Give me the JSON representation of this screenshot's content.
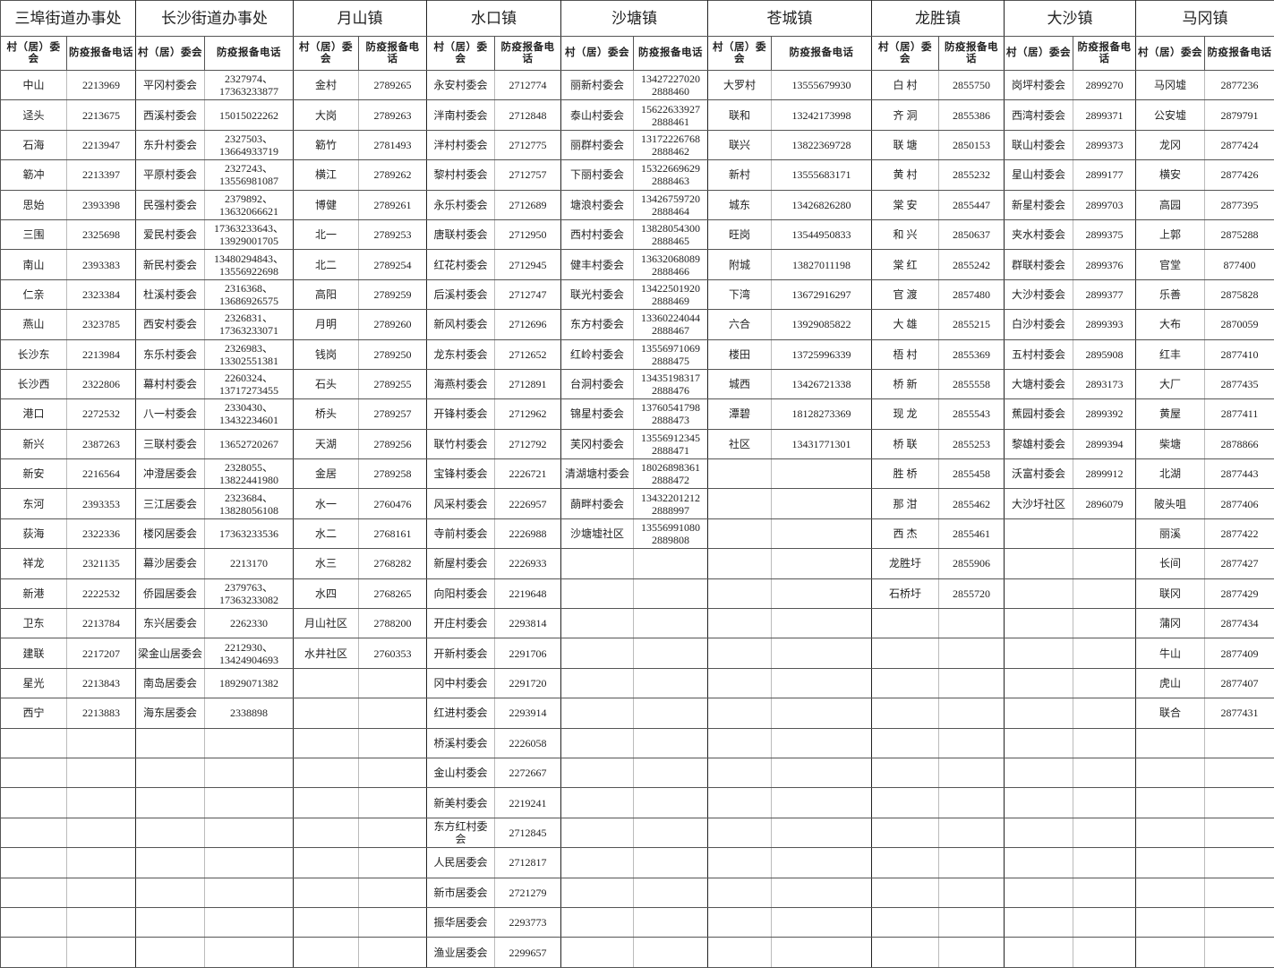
{
  "sub_headers": {
    "name": "村（居）委会",
    "phone": "防疫报备电话"
  },
  "towns": [
    {
      "name": "三埠街道办事处",
      "rows": [
        [
          "中山",
          "2213969"
        ],
        [
          "迳头",
          "2213675"
        ],
        [
          "石海",
          "2213947"
        ],
        [
          "簕冲",
          "2213397"
        ],
        [
          "思始",
          "2393398"
        ],
        [
          "三围",
          "2325698"
        ],
        [
          "南山",
          "2393383"
        ],
        [
          "仁亲",
          "2323384"
        ],
        [
          "燕山",
          "2323785"
        ],
        [
          "长沙东",
          "2213984"
        ],
        [
          "长沙西",
          "2322806"
        ],
        [
          "港口",
          "2272532"
        ],
        [
          "新兴",
          "2387263"
        ],
        [
          "新安",
          "2216564"
        ],
        [
          "东河",
          "2393353"
        ],
        [
          "荻海",
          "2322336"
        ],
        [
          "祥龙",
          "2321135"
        ],
        [
          "新港",
          "2222532"
        ],
        [
          "卫东",
          "2213784"
        ],
        [
          "建联",
          "2217207"
        ],
        [
          "星光",
          "2213843"
        ],
        [
          "西宁",
          "2213883"
        ]
      ]
    },
    {
      "name": "长沙街道办事处",
      "rows": [
        [
          "平冈村委会",
          "2327974、17363233877"
        ],
        [
          "西溪村委会",
          "15015022262"
        ],
        [
          "东升村委会",
          "2327503、13664933719"
        ],
        [
          "平原村委会",
          "2327243、13556981087"
        ],
        [
          "民强村委会",
          "2379892、13632066621"
        ],
        [
          "爱民村委会",
          "17363233643、13929001705"
        ],
        [
          "新民村委会",
          "13480294843、13556922698"
        ],
        [
          "杜溪村委会",
          "2316368、13686926575"
        ],
        [
          "西安村委会",
          "2326831、17363233071"
        ],
        [
          "东乐村委会",
          "2326983、13302551381"
        ],
        [
          "幕村村委会",
          "2260324、13717273455"
        ],
        [
          "八一村委会",
          "2330430、13432234601"
        ],
        [
          "三联村委会",
          "13652720267"
        ],
        [
          "冲澄居委会",
          "2328055、13822441980"
        ],
        [
          "三江居委会",
          "2323684、13828056108"
        ],
        [
          "楼冈居委会",
          "17363233536"
        ],
        [
          "幕沙居委会",
          "2213170"
        ],
        [
          "侨园居委会",
          "2379763、17363233082"
        ],
        [
          "东兴居委会",
          "2262330"
        ],
        [
          "梁金山居委会",
          "2212930、13424904693"
        ],
        [
          "南岛居委会",
          "18929071382"
        ],
        [
          "海东居委会",
          "2338898"
        ]
      ]
    },
    {
      "name": "月山镇",
      "rows": [
        [
          "金村",
          "2789265"
        ],
        [
          "大岗",
          "2789263"
        ],
        [
          "簕竹",
          "2781493"
        ],
        [
          "横江",
          "2789262"
        ],
        [
          "博健",
          "2789261"
        ],
        [
          "北一",
          "2789253"
        ],
        [
          "北二",
          "2789254"
        ],
        [
          "高阳",
          "2789259"
        ],
        [
          "月明",
          "2789260"
        ],
        [
          "钱岗",
          "2789250"
        ],
        [
          "石头",
          "2789255"
        ],
        [
          "桥头",
          "2789257"
        ],
        [
          "天湖",
          "2789256"
        ],
        [
          "金居",
          "2789258"
        ],
        [
          "水一",
          "2760476"
        ],
        [
          "水二",
          "2768161"
        ],
        [
          "水三",
          "2768282"
        ],
        [
          "水四",
          "2768265"
        ],
        [
          "月山社区",
          "2788200"
        ],
        [
          "水井社区",
          "2760353"
        ]
      ]
    },
    {
      "name": "水口镇",
      "rows": [
        [
          "永安村委会",
          "2712774"
        ],
        [
          "泮南村委会",
          "2712848"
        ],
        [
          "泮村村委会",
          "2712775"
        ],
        [
          "黎村村委会",
          "2712757"
        ],
        [
          "永乐村委会",
          "2712689"
        ],
        [
          "唐联村委会",
          "2712950"
        ],
        [
          "红花村委会",
          "2712945"
        ],
        [
          "后溪村委会",
          "2712747"
        ],
        [
          "新风村委会",
          "2712696"
        ],
        [
          "龙东村委会",
          "2712652"
        ],
        [
          "海燕村委会",
          "2712891"
        ],
        [
          "开锋村委会",
          "2712962"
        ],
        [
          "联竹村委会",
          "2712792"
        ],
        [
          "宝锋村委会",
          "2226721"
        ],
        [
          "风采村委会",
          "2226957"
        ],
        [
          "寺前村委会",
          "2226988"
        ],
        [
          "新屋村委会",
          "2226933"
        ],
        [
          "向阳村委会",
          "2219648"
        ],
        [
          "开庄村委会",
          "2293814"
        ],
        [
          "开新村委会",
          "2291706"
        ],
        [
          "冈中村委会",
          "2291720"
        ],
        [
          "红进村委会",
          "2293914"
        ],
        [
          "桥溪村委会",
          "2226058"
        ],
        [
          "金山村委会",
          "2272667"
        ],
        [
          "新美村委会",
          "2219241"
        ],
        [
          "东方红村委会",
          "2712845"
        ],
        [
          "人民居委会",
          "2712817"
        ],
        [
          "新市居委会",
          "2721279"
        ],
        [
          "振华居委会",
          "2293773"
        ],
        [
          "渔业居委会",
          "2299657"
        ]
      ]
    },
    {
      "name": "沙塘镇",
      "rows": [
        [
          "丽新村委会",
          "13427227020 2888460"
        ],
        [
          "泰山村委会",
          "15622633927 2888461"
        ],
        [
          "丽群村委会",
          "13172226768 2888462"
        ],
        [
          "下丽村委会",
          "15322669629 2888463"
        ],
        [
          "塘浪村委会",
          "13426759720 2888464"
        ],
        [
          "西村村委会",
          "13828054300 2888465"
        ],
        [
          "健丰村委会",
          "13632068089 2888466"
        ],
        [
          "联光村委会",
          "13422501920 2888469"
        ],
        [
          "东方村委会",
          "13360224044 2888467"
        ],
        [
          "红岭村委会",
          "13556971069 2888475"
        ],
        [
          "台洞村委会",
          "13435198317 2888476"
        ],
        [
          "锦星村委会",
          "13760541798 2888473"
        ],
        [
          "芙冈村委会",
          "13556912345 2888471"
        ],
        [
          "清湖塘村委会",
          "18026898361 2888472"
        ],
        [
          "蓢畔村委会",
          "13432201212 2888997"
        ],
        [
          "沙塘墟社区",
          "13556991080 2889808"
        ]
      ]
    },
    {
      "name": "苍城镇",
      "rows": [
        [
          "大罗村",
          "13555679930"
        ],
        [
          "联和",
          "13242173998"
        ],
        [
          "联兴",
          "13822369728"
        ],
        [
          "新村",
          "13555683171"
        ],
        [
          "城东",
          "13426826280"
        ],
        [
          "旺岗",
          "13544950833"
        ],
        [
          "附城",
          "13827011198"
        ],
        [
          "下湾",
          "13672916297"
        ],
        [
          "六合",
          "13929085822"
        ],
        [
          "楼田",
          "13725996339"
        ],
        [
          "城西",
          "13426721338"
        ],
        [
          "潭碧",
          "18128273369"
        ],
        [
          "社区",
          "13431771301"
        ]
      ]
    },
    {
      "name": "龙胜镇",
      "rows": [
        [
          "白 村",
          "2855750"
        ],
        [
          "齐 洞",
          "2855386"
        ],
        [
          "联 塘",
          "2850153"
        ],
        [
          "黄 村",
          "2855232"
        ],
        [
          "棠 安",
          "2855447"
        ],
        [
          "和 兴",
          "2850637"
        ],
        [
          "棠 红",
          "2855242"
        ],
        [
          "官 渡",
          "2857480"
        ],
        [
          "大 雄",
          "2855215"
        ],
        [
          "梧 村",
          "2855369"
        ],
        [
          "桥 新",
          "2855558"
        ],
        [
          "现 龙",
          "2855543"
        ],
        [
          "桥 联",
          "2855253"
        ],
        [
          "胜 桥",
          "2855458"
        ],
        [
          "那 泔",
          "2855462"
        ],
        [
          "西 杰",
          "2855461"
        ],
        [
          "龙胜圩",
          "2855906"
        ],
        [
          "石桥圩",
          "2855720"
        ]
      ]
    },
    {
      "name": "大沙镇",
      "rows": [
        [
          "岗坪村委会",
          "2899270"
        ],
        [
          "西湾村委会",
          "2899371"
        ],
        [
          "联山村委会",
          "2899373"
        ],
        [
          "星山村委会",
          "2899177"
        ],
        [
          "新星村委会",
          "2899703"
        ],
        [
          "夹水村委会",
          "2899375"
        ],
        [
          "群联村委会",
          "2899376"
        ],
        [
          "大沙村委会",
          "2899377"
        ],
        [
          "白沙村委会",
          "2899393"
        ],
        [
          "五村村委会",
          "2895908"
        ],
        [
          "大塘村委会",
          "2893173"
        ],
        [
          "蕉园村委会",
          "2899392"
        ],
        [
          "黎雄村委会",
          "2899394"
        ],
        [
          "沃富村委会",
          "2899912"
        ],
        [
          "大沙圩社区",
          "2896079"
        ]
      ]
    },
    {
      "name": "马冈镇",
      "rows": [
        [
          "马冈墟",
          "2877236"
        ],
        [
          "公安墟",
          "2879791"
        ],
        [
          "龙冈",
          "2877424"
        ],
        [
          "横安",
          "2877426"
        ],
        [
          "高园",
          "2877395"
        ],
        [
          "上郭",
          "2875288"
        ],
        [
          "官堂",
          "877400"
        ],
        [
          "乐善",
          "2875828"
        ],
        [
          "大布",
          "2870059"
        ],
        [
          "红丰",
          "2877410"
        ],
        [
          "大厂",
          "2877435"
        ],
        [
          "黄屋",
          "2877411"
        ],
        [
          "柴塘",
          "2878866"
        ],
        [
          "北湖",
          "2877443"
        ],
        [
          "陂头咀",
          "2877406"
        ],
        [
          "丽溪",
          "2877422"
        ],
        [
          "长间",
          "2877427"
        ],
        [
          "联冈",
          "2877429"
        ],
        [
          "蒲冈",
          "2877434"
        ],
        [
          "牛山",
          "2877409"
        ],
        [
          "虎山",
          "2877407"
        ],
        [
          "联合",
          "2877431"
        ]
      ]
    }
  ]
}
